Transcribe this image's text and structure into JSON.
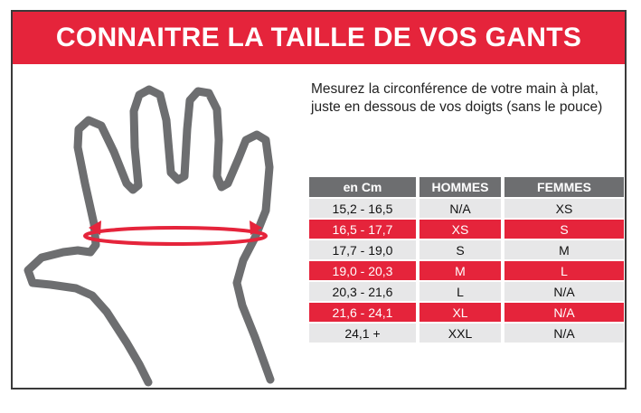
{
  "banner": {
    "title": "CONNAITRE LA TAILLE DE VOS GANTS"
  },
  "instructions": {
    "line1": "Mesurez la circonférence de votre main à plat,",
    "line2": "juste en dessous de vos doigts (sans le pouce)"
  },
  "table": {
    "headers": [
      "en Cm",
      "HOMMES",
      "FEMMES"
    ],
    "rows": [
      [
        "15,2 - 16,5",
        "N/A",
        "XS"
      ],
      [
        "16,5 - 17,7",
        "XS",
        "S"
      ],
      [
        "17,7 - 19,0",
        "S",
        "M"
      ],
      [
        "19,0 - 20,3",
        "M",
        "L"
      ],
      [
        "20,3 - 21,6",
        "L",
        "N/A"
      ],
      [
        "21,6 - 24,1",
        "XL",
        "N/A"
      ],
      [
        "24,1 +",
        "XXL",
        "N/A"
      ]
    ]
  },
  "colors": {
    "accent": "#e5243b",
    "header_gray": "#6d6e70",
    "row_gray": "#e7e7e8",
    "hand_outline": "#6d6e70"
  },
  "icons": {
    "hand": "hand-outline-icon",
    "measure": "circumference-arrow-icon"
  }
}
